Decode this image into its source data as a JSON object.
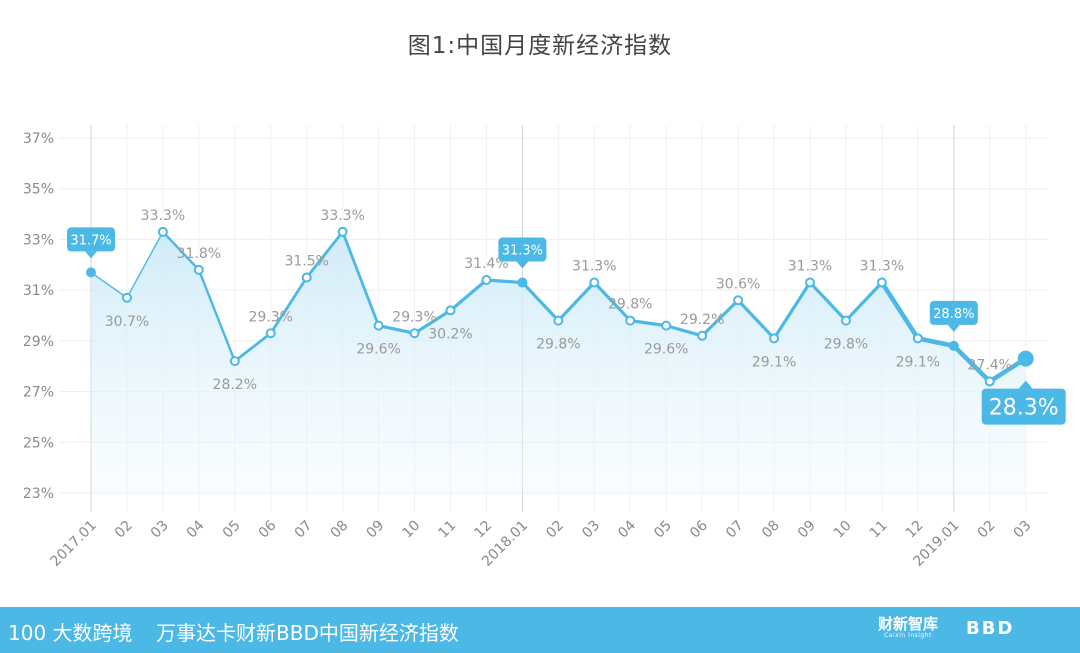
{
  "title": "图1:中国月度新经济指数",
  "footer": {
    "brand_left": "100 大数跨境",
    "subtitle": "万事达卡财新BBD中国新经济指数",
    "brand_caixin": "财新智库",
    "brand_caixin_sub": "Caixin Insight",
    "brand_bbd": "BBD"
  },
  "colors": {
    "line": "#4cb8e6",
    "fill_top": "#d4eef9",
    "callout": "#4cb8e6",
    "footer": "#4cb8e6"
  },
  "chart_data": {
    "type": "line",
    "title": "图1:中国月度新经济指数",
    "xlabel": "",
    "ylabel": "",
    "ylim": [
      23,
      37
    ],
    "yticks": [
      "23%",
      "25%",
      "27%",
      "29%",
      "31%",
      "33%",
      "35%",
      "37%"
    ],
    "grid": true,
    "categories": [
      "2017.01",
      "02",
      "03",
      "04",
      "05",
      "06",
      "07",
      "08",
      "09",
      "10",
      "11",
      "12",
      "2018.01",
      "02",
      "03",
      "04",
      "05",
      "06",
      "07",
      "08",
      "09",
      "10",
      "11",
      "12",
      "2019.01",
      "02",
      "03"
    ],
    "values": [
      31.7,
      30.7,
      33.3,
      31.8,
      28.2,
      29.3,
      31.5,
      33.3,
      29.6,
      29.3,
      30.2,
      31.4,
      31.3,
      29.8,
      31.3,
      29.8,
      29.6,
      29.2,
      30.6,
      29.1,
      31.3,
      29.8,
      31.3,
      29.1,
      28.8,
      27.4,
      28.3
    ],
    "labels": [
      "31.7%",
      "30.7%",
      "33.3%",
      "31.8%",
      "28.2%",
      "29.3%",
      "31.5%",
      "33.3%",
      "29.6%",
      "29.3%",
      "30.2%",
      "31.4%",
      "31.3%",
      "29.8%",
      "31.3%",
      "29.8%",
      "29.6%",
      "29.2%",
      "30.6%",
      "29.1%",
      "31.3%",
      "29.8%",
      "31.3%",
      "29.1%",
      "28.8%",
      "27.4%",
      "28.3%"
    ],
    "label_pos": [
      "callout",
      "below",
      "above",
      "above",
      "below",
      "above",
      "above",
      "above",
      "below",
      "above",
      "below",
      "above",
      "callout",
      "below",
      "above",
      "above",
      "below",
      "above",
      "above",
      "below",
      "above",
      "below",
      "above",
      "below",
      "callout",
      "above",
      "callout-big"
    ],
    "year_markers": [
      0,
      12,
      24
    ]
  }
}
